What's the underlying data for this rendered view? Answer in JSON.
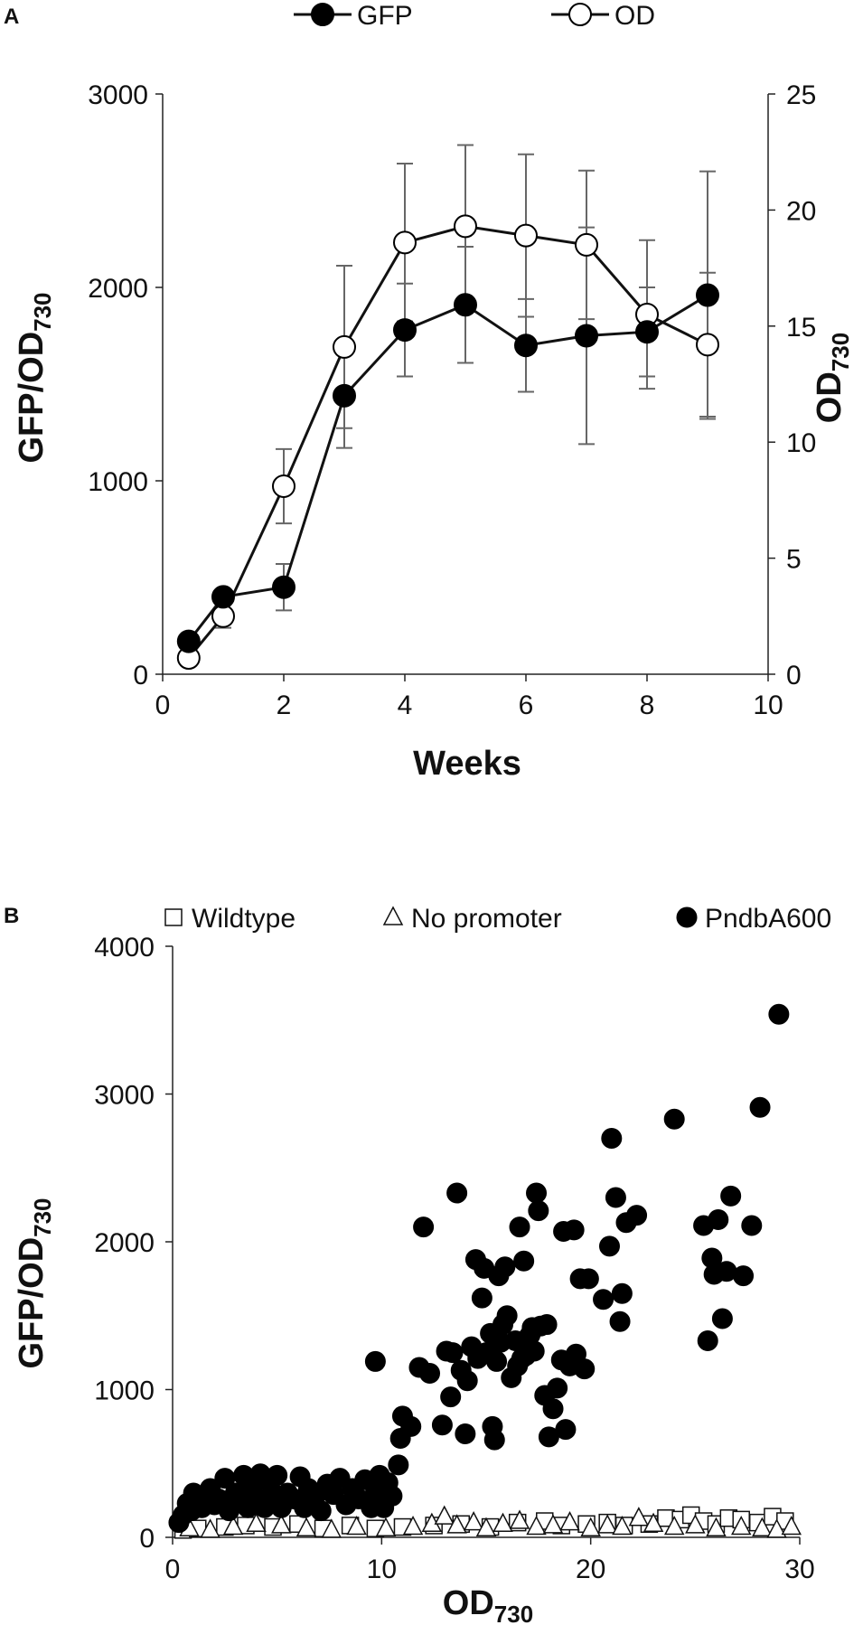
{
  "chart_data": [
    {
      "panel": "A",
      "type": "line",
      "xlabel": "Weeks",
      "ylabel_left": {
        "main": "GFP/OD",
        "sub": "730"
      },
      "ylabel_right": {
        "main": "OD",
        "sub": "730"
      },
      "xlim": [
        0,
        10
      ],
      "ylim_left": [
        0,
        3000
      ],
      "ylim_right": [
        0,
        25
      ],
      "xticks": [
        "0",
        "2",
        "4",
        "6",
        "8",
        "10"
      ],
      "yticks_left": [
        "0",
        "1000",
        "2000",
        "3000"
      ],
      "yticks_right": [
        "0",
        "5",
        "10",
        "15",
        "20",
        "25"
      ],
      "grid": false,
      "legend_position": "top-center",
      "series": [
        {
          "name": "GFP",
          "axis": "left",
          "marker": "filled-circle",
          "x": [
            0.43,
            1,
            2,
            3,
            4,
            5,
            6,
            7,
            8,
            9
          ],
          "y": [
            170,
            400,
            450,
            1440,
            1780,
            1910,
            1700,
            1750,
            1770,
            1960
          ],
          "err": [
            0,
            0,
            120,
            270,
            240,
            300,
            240,
            560,
            230,
            640
          ]
        },
        {
          "name": "OD",
          "axis": "right",
          "marker": "open-circle",
          "x": [
            0.43,
            1,
            2,
            3,
            4,
            5,
            6,
            7,
            8,
            9
          ],
          "y": [
            0.7,
            2.5,
            8.1,
            14.1,
            18.6,
            19.3,
            18.9,
            18.5,
            15.5,
            14.2
          ],
          "err": [
            0,
            0.5,
            1.6,
            3.5,
            3.4,
            3.5,
            3.5,
            3.2,
            3.2,
            3.1
          ]
        }
      ]
    },
    {
      "panel": "B",
      "type": "scatter",
      "xlabel": {
        "main": "OD",
        "sub": "730"
      },
      "ylabel": {
        "main": "GFP/OD",
        "sub": "730"
      },
      "xlim": [
        0,
        30
      ],
      "ylim": [
        0,
        4000
      ],
      "xticks": [
        "0",
        "10",
        "20",
        "30"
      ],
      "yticks": [
        "0",
        "1000",
        "2000",
        "3000",
        "4000"
      ],
      "grid": false,
      "legend_position": "top",
      "series": [
        {
          "name": "Wildtype",
          "marker": "open-square",
          "points": [
            [
              0.5,
              50
            ],
            [
              1.2,
              60
            ],
            [
              2.5,
              70
            ],
            [
              3.5,
              80
            ],
            [
              4.8,
              70
            ],
            [
              6.0,
              90
            ],
            [
              7.2,
              60
            ],
            [
              8.5,
              80
            ],
            [
              9.7,
              60
            ],
            [
              11.0,
              70
            ],
            [
              12.5,
              80
            ],
            [
              13.8,
              90
            ],
            [
              15.2,
              70
            ],
            [
              16.5,
              100
            ],
            [
              17.8,
              110
            ],
            [
              18.6,
              80
            ],
            [
              19.8,
              90
            ],
            [
              20.8,
              100
            ],
            [
              21.6,
              80
            ],
            [
              22.8,
              90
            ],
            [
              23.6,
              130
            ],
            [
              24.3,
              120
            ],
            [
              24.8,
              150
            ],
            [
              25.4,
              110
            ],
            [
              26.0,
              90
            ],
            [
              26.6,
              130
            ],
            [
              27.2,
              120
            ],
            [
              28.0,
              100
            ],
            [
              28.7,
              140
            ],
            [
              29.3,
              110
            ]
          ]
        },
        {
          "name": "No promoter",
          "marker": "open-triangle",
          "points": [
            [
              0.8,
              60
            ],
            [
              1.8,
              50
            ],
            [
              2.9,
              70
            ],
            [
              4.0,
              90
            ],
            [
              5.2,
              80
            ],
            [
              6.4,
              60
            ],
            [
              7.6,
              50
            ],
            [
              8.8,
              70
            ],
            [
              10.2,
              60
            ],
            [
              11.5,
              70
            ],
            [
              12.4,
              90
            ],
            [
              13.0,
              140
            ],
            [
              13.6,
              80
            ],
            [
              14.4,
              100
            ],
            [
              15.0,
              60
            ],
            [
              15.8,
              90
            ],
            [
              16.6,
              110
            ],
            [
              17.4,
              70
            ],
            [
              18.2,
              80
            ],
            [
              19.0,
              100
            ],
            [
              20.0,
              60
            ],
            [
              20.8,
              80
            ],
            [
              21.5,
              70
            ],
            [
              22.3,
              130
            ],
            [
              23.0,
              90
            ],
            [
              24.0,
              70
            ],
            [
              25.0,
              80
            ],
            [
              26.0,
              60
            ],
            [
              27.2,
              70
            ],
            [
              28.2,
              60
            ],
            [
              28.9,
              50
            ],
            [
              29.6,
              70
            ]
          ]
        },
        {
          "name": "PndbA600",
          "marker": "filled-circle",
          "points": [
            [
              0.3,
              100
            ],
            [
              0.5,
              150
            ],
            [
              0.7,
              230
            ],
            [
              0.9,
              180
            ],
            [
              1.0,
              300
            ],
            [
              1.2,
              250
            ],
            [
              1.4,
              200
            ],
            [
              1.6,
              280
            ],
            [
              1.8,
              330
            ],
            [
              2.0,
              220
            ],
            [
              2.2,
              260
            ],
            [
              2.5,
              400
            ],
            [
              2.7,
              180
            ],
            [
              3.0,
              300
            ],
            [
              3.2,
              250
            ],
            [
              3.4,
              420
            ],
            [
              3.6,
              200
            ],
            [
              3.8,
              340
            ],
            [
              4.0,
              270
            ],
            [
              4.2,
              430
            ],
            [
              4.4,
              200
            ],
            [
              4.6,
              380
            ],
            [
              4.8,
              300
            ],
            [
              5.0,
              420
            ],
            [
              5.2,
              200
            ],
            [
              5.5,
              300
            ],
            [
              5.8,
              260
            ],
            [
              6.1,
              410
            ],
            [
              6.3,
              200
            ],
            [
              6.5,
              330
            ],
            [
              6.8,
              270
            ],
            [
              7.1,
              180
            ],
            [
              7.4,
              360
            ],
            [
              7.7,
              290
            ],
            [
              8.0,
              400
            ],
            [
              8.3,
              220
            ],
            [
              8.6,
              330
            ],
            [
              8.9,
              260
            ],
            [
              9.2,
              390
            ],
            [
              9.5,
              200
            ],
            [
              9.7,
              300
            ],
            [
              9.9,
              420
            ],
            [
              10.1,
              200
            ],
            [
              10.3,
              370
            ],
            [
              10.5,
              280
            ],
            [
              9.7,
              1190
            ],
            [
              10.8,
              490
            ],
            [
              10.9,
              670
            ],
            [
              11.0,
              820
            ],
            [
              11.4,
              750
            ],
            [
              11.8,
              1150
            ],
            [
              12.0,
              2100
            ],
            [
              12.3,
              1110
            ],
            [
              12.9,
              760
            ],
            [
              13.1,
              1260
            ],
            [
              13.3,
              950
            ],
            [
              13.4,
              1250
            ],
            [
              13.6,
              2330
            ],
            [
              13.8,
              1130
            ],
            [
              14.0,
              700
            ],
            [
              14.1,
              1060
            ],
            [
              14.3,
              1290
            ],
            [
              14.5,
              1880
            ],
            [
              14.6,
              1210
            ],
            [
              14.8,
              1620
            ],
            [
              14.9,
              1820
            ],
            [
              15.0,
              1250
            ],
            [
              15.2,
              1380
            ],
            [
              15.3,
              750
            ],
            [
              15.4,
              660
            ],
            [
              15.5,
              1190
            ],
            [
              15.6,
              1770
            ],
            [
              15.7,
              1320
            ],
            [
              15.8,
              1440
            ],
            [
              15.9,
              1830
            ],
            [
              16.0,
              1500
            ],
            [
              16.2,
              1080
            ],
            [
              16.4,
              1330
            ],
            [
              16.5,
              1160
            ],
            [
              16.6,
              2100
            ],
            [
              16.7,
              1210
            ],
            [
              16.8,
              1870
            ],
            [
              16.9,
              1230
            ],
            [
              17.0,
              1350
            ],
            [
              17.1,
              1370
            ],
            [
              17.2,
              1420
            ],
            [
              17.3,
              1260
            ],
            [
              17.4,
              2330
            ],
            [
              17.5,
              2210
            ],
            [
              17.6,
              1430
            ],
            [
              17.8,
              960
            ],
            [
              17.9,
              1440
            ],
            [
              18.0,
              680
            ],
            [
              18.2,
              870
            ],
            [
              18.4,
              1010
            ],
            [
              18.6,
              1200
            ],
            [
              18.7,
              2070
            ],
            [
              18.8,
              730
            ],
            [
              19.0,
              1160
            ],
            [
              19.2,
              2080
            ],
            [
              19.3,
              1240
            ],
            [
              19.5,
              1750
            ],
            [
              19.7,
              1140
            ],
            [
              19.9,
              1750
            ],
            [
              20.6,
              1610
            ],
            [
              20.9,
              1970
            ],
            [
              21.0,
              2700
            ],
            [
              21.2,
              2300
            ],
            [
              21.4,
              1460
            ],
            [
              21.5,
              1650
            ],
            [
              21.7,
              2130
            ],
            [
              22.2,
              2180
            ],
            [
              24.0,
              2830
            ],
            [
              25.4,
              2110
            ],
            [
              25.6,
              1330
            ],
            [
              25.8,
              1890
            ],
            [
              25.9,
              1780
            ],
            [
              26.1,
              2150
            ],
            [
              26.3,
              1480
            ],
            [
              26.5,
              1800
            ],
            [
              26.7,
              2310
            ],
            [
              27.3,
              1770
            ],
            [
              27.7,
              2110
            ],
            [
              28.1,
              2910
            ],
            [
              29.0,
              3540
            ]
          ]
        }
      ]
    }
  ]
}
